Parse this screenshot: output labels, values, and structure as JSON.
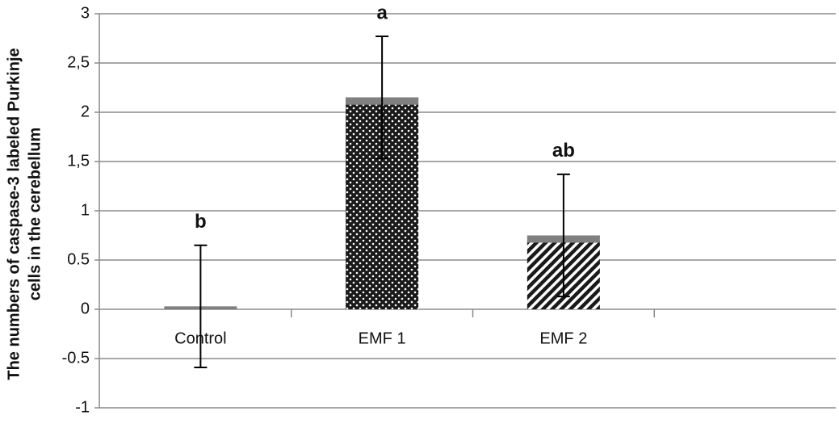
{
  "chart_data": {
    "type": "bar",
    "y_label": [
      "The numbers of caspase-3 labeled Purkinje",
      "cells in the cerebellum"
    ],
    "categories": [
      "Control",
      "EMF 1",
      "EMF 2",
      null
    ],
    "values": [
      0.03,
      2.15,
      0.75,
      null
    ],
    "errors": [
      0.62,
      0.62,
      0.62,
      null
    ],
    "annotations": [
      "b",
      "a",
      "ab",
      null
    ],
    "patterns": [
      "solid",
      "dots",
      "hatch",
      null
    ],
    "color": "#808080",
    "ylim": [
      -1,
      3
    ],
    "yticks": [
      -1,
      -0.5,
      0,
      0.5,
      1,
      {
        "value": 1.5,
        "label": "1,5"
      },
      2,
      {
        "value": 2.5,
        "label": "2,5"
      },
      3
    ],
    "grid": true
  }
}
